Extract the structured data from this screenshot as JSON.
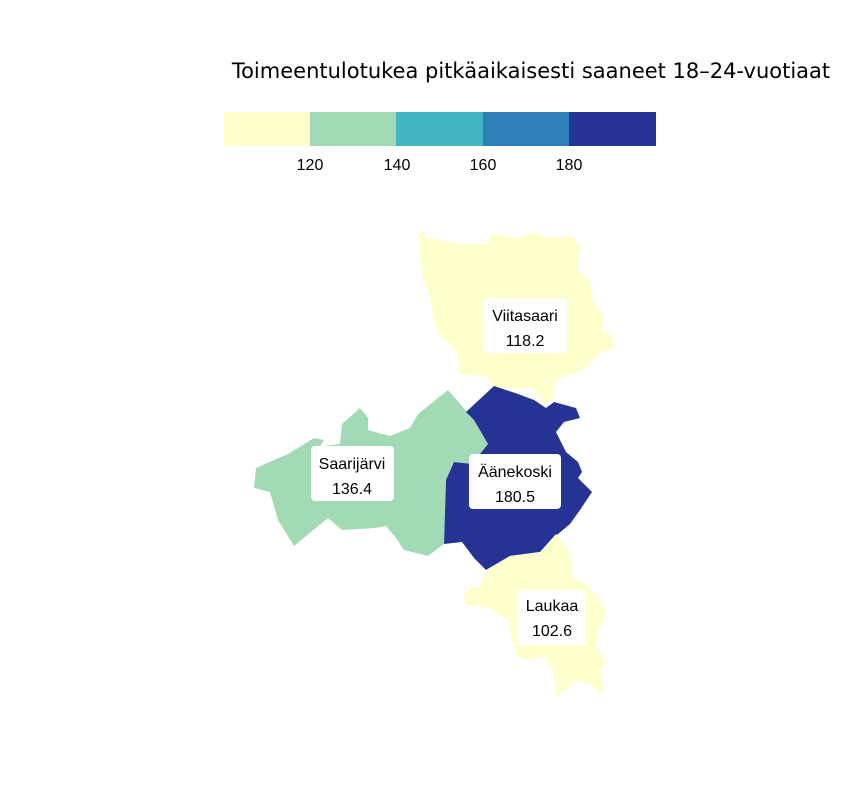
{
  "title": "Toimeentulotukea pitkäaikaisesti saaneet 18–24-vuotiaat",
  "legend": {
    "colors": [
      "#ffffcc",
      "#a1dab4",
      "#41b6c4",
      "#2c7fb8",
      "#253494"
    ],
    "breaks": [
      120,
      140,
      160,
      180
    ],
    "tick_labels": [
      "120",
      "140",
      "160",
      "180"
    ]
  },
  "regions": [
    {
      "name": "Viitasaari",
      "value": 118.2,
      "value_label": "118.2",
      "color": "#ffffcc"
    },
    {
      "name": "Saarijärvi",
      "value": 136.4,
      "value_label": "136.4",
      "color": "#a1dab4"
    },
    {
      "name": "Äänekoski",
      "value": 180.5,
      "value_label": "180.5",
      "color": "#253494"
    },
    {
      "name": "Laukaa",
      "value": 102.6,
      "value_label": "102.6",
      "color": "#ffffcc"
    }
  ]
}
